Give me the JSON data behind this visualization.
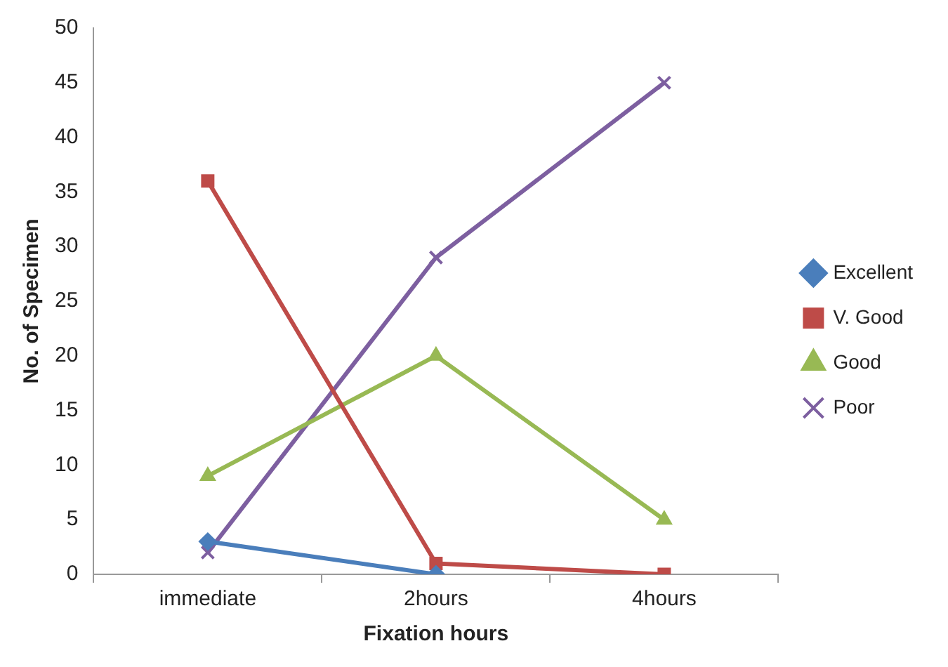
{
  "chart_data": {
    "type": "line",
    "xlabel": "Fixation hours",
    "ylabel": "No. of Specimen",
    "categories": [
      "immediate",
      "2hours",
      "4hours"
    ],
    "series": [
      {
        "name": "Excellent",
        "color": "#4a7ebb",
        "marker": "diamond",
        "values": [
          3,
          0,
          null
        ]
      },
      {
        "name": "V. Good",
        "color": "#be4b48",
        "marker": "square",
        "values": [
          36,
          1,
          0
        ]
      },
      {
        "name": "Good",
        "color": "#98b954",
        "marker": "triangle",
        "values": [
          9,
          20,
          5
        ]
      },
      {
        "name": "Poor",
        "color": "#7d5fa0",
        "marker": "cross",
        "values": [
          2,
          29,
          45
        ]
      }
    ],
    "ylim": [
      0,
      50
    ],
    "yticks": [
      0,
      5,
      10,
      15,
      20,
      25,
      30,
      35,
      40,
      45,
      50
    ],
    "grid": false,
    "legend": "right"
  }
}
